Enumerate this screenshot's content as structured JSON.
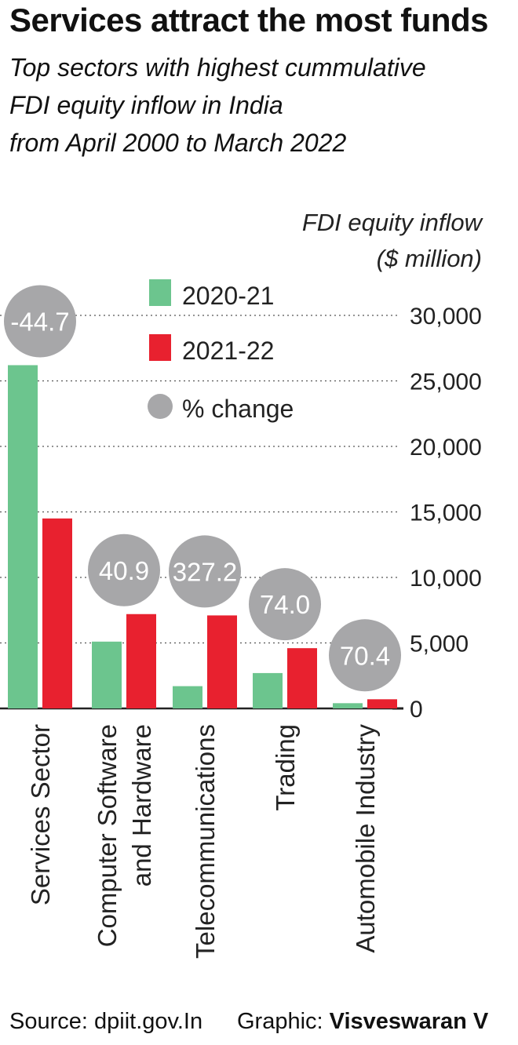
{
  "title": "Services attract the most funds",
  "subtitle_lines": [
    "Top sectors with highest cummulative",
    "FDI equity inflow in India",
    "from April 2000 to March 2022"
  ],
  "footer": {
    "source": "Source: dpiit.gov.In",
    "graphic_label": "Graphic: ",
    "graphic_author": "Visveswaran V"
  },
  "colors": {
    "series_2020_21": "#6cc58e",
    "series_2021_22": "#e8212f",
    "pct_change": "#a7a7a9",
    "grid": "#555555"
  },
  "chart_data": {
    "type": "bar",
    "ylabel_lines": [
      "FDI equity inflow",
      "($ million)"
    ],
    "categories": [
      [
        "Services Sector"
      ],
      [
        "Computer Software",
        "and Hardware"
      ],
      [
        "Telecommunications"
      ],
      [
        "Trading"
      ],
      [
        "Automobile Industry"
      ]
    ],
    "series": [
      {
        "name": "2020-21",
        "values": [
          26200,
          5100,
          1700,
          2700,
          400
        ]
      },
      {
        "name": "2021-22",
        "values": [
          14500,
          7200,
          7100,
          4600,
          700
        ]
      }
    ],
    "pct_change": {
      "name": "% change",
      "values": [
        "-44.7",
        "40.9",
        "327.2",
        "74.0",
        "70.4"
      ]
    },
    "yticks": [
      "30,000",
      "25,000",
      "20,000",
      "15,000",
      "10,000",
      "5,000",
      "0"
    ],
    "ytick_values": [
      30000,
      25000,
      20000,
      15000,
      10000,
      5000,
      0
    ],
    "ylim": [
      0,
      30000
    ],
    "grid": true,
    "legend_position": "top-center"
  }
}
